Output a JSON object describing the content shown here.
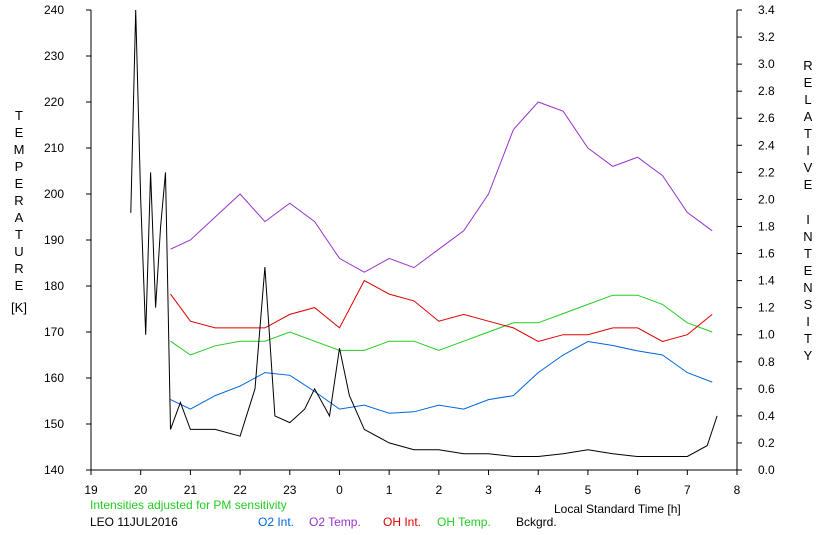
{
  "chart_data": {
    "type": "line",
    "xlabel": "Local Standard Time [h]",
    "ylabel_left": "TEMPERATURE",
    "ylabel_left_unit": "[K]",
    "ylabel_right": "RELATIVE INTENSITY",
    "x_ticks": [
      "19",
      "20",
      "21",
      "22",
      "23",
      "0",
      "1",
      "2",
      "3",
      "4",
      "5",
      "6",
      "7",
      "8"
    ],
    "xlim": [
      19,
      32
    ],
    "ylim_left": [
      140,
      240
    ],
    "y_left_ticks": [
      "140",
      "150",
      "160",
      "170",
      "180",
      "190",
      "200",
      "210",
      "220",
      "230",
      "240"
    ],
    "ylim_right": [
      0.0,
      3.4
    ],
    "y_right_ticks": [
      "0.0",
      "0.2",
      "0.4",
      "0.6",
      "0.8",
      "1.0",
      "1.2",
      "1.4",
      "1.6",
      "1.8",
      "2.0",
      "2.2",
      "2.4",
      "2.6",
      "2.8",
      "3.0",
      "3.2",
      "3.4"
    ],
    "grid": false,
    "note": "Intensities adjusted for PM sensitivity",
    "station": "LEO 11JUL2016",
    "series": [
      {
        "name": "O2 Int.",
        "color": "#0066dd",
        "axis": "right",
        "x": [
          20.6,
          21.0,
          21.5,
          22.0,
          22.5,
          23.0,
          23.5,
          24.0,
          24.5,
          25.0,
          25.5,
          26.0,
          26.5,
          27.0,
          27.5,
          28.0,
          28.5,
          29.0,
          29.5,
          30.0,
          30.5,
          31.0,
          31.5
        ],
        "values": [
          0.52,
          0.45,
          0.55,
          0.62,
          0.72,
          0.7,
          0.58,
          0.45,
          0.48,
          0.42,
          0.43,
          0.48,
          0.45,
          0.52,
          0.55,
          0.72,
          0.85,
          0.95,
          0.92,
          0.88,
          0.85,
          0.72,
          0.65
        ]
      },
      {
        "name": "O2 Temp.",
        "color": "#9933cc",
        "axis": "left",
        "x": [
          20.6,
          21.0,
          21.5,
          22.0,
          22.5,
          23.0,
          23.5,
          24.0,
          24.5,
          25.0,
          25.5,
          26.0,
          26.5,
          27.0,
          27.5,
          28.0,
          28.5,
          29.0,
          29.5,
          30.0,
          30.5,
          31.0,
          31.5
        ],
        "values": [
          188,
          190,
          195,
          200,
          194,
          198,
          194,
          186,
          183,
          186,
          184,
          188,
          192,
          200,
          214,
          220,
          218,
          210,
          206,
          208,
          204,
          196,
          192
        ]
      },
      {
        "name": "OH Int.",
        "color": "#dd0000",
        "axis": "right",
        "x": [
          20.6,
          21.0,
          21.5,
          22.0,
          22.5,
          23.0,
          23.5,
          24.0,
          24.5,
          25.0,
          25.5,
          26.0,
          26.5,
          27.0,
          27.5,
          28.0,
          28.5,
          29.0,
          29.5,
          30.0,
          30.5,
          31.0,
          31.5
        ],
        "values": [
          1.3,
          1.1,
          1.05,
          1.05,
          1.05,
          1.15,
          1.2,
          1.05,
          1.4,
          1.3,
          1.25,
          1.1,
          1.15,
          1.1,
          1.05,
          0.95,
          1.0,
          1.0,
          1.05,
          1.05,
          0.95,
          1.0,
          1.15
        ]
      },
      {
        "name": "OH Temp.",
        "color": "#22cc22",
        "axis": "left",
        "x": [
          20.6,
          21.0,
          21.5,
          22.0,
          22.5,
          23.0,
          23.5,
          24.0,
          24.5,
          25.0,
          25.5,
          26.0,
          26.5,
          27.0,
          27.5,
          28.0,
          28.5,
          29.0,
          29.5,
          30.0,
          30.5,
          31.0,
          31.5
        ],
        "values": [
          168,
          165,
          167,
          168,
          168,
          170,
          168,
          166,
          166,
          168,
          168,
          166,
          168,
          170,
          172,
          172,
          174,
          176,
          178,
          178,
          176,
          172,
          170
        ]
      },
      {
        "name": "Bckgrd.",
        "color": "#000000",
        "axis": "right",
        "x": [
          19.8,
          19.9,
          20.0,
          20.1,
          20.2,
          20.3,
          20.4,
          20.5,
          20.6,
          20.8,
          21.0,
          21.5,
          22.0,
          22.3,
          22.5,
          22.7,
          23.0,
          23.3,
          23.5,
          23.8,
          24.0,
          24.2,
          24.5,
          25.0,
          25.5,
          26.0,
          26.5,
          27.0,
          27.5,
          28.0,
          28.5,
          29.0,
          29.5,
          30.0,
          30.5,
          31.0,
          31.4,
          31.6
        ],
        "values": [
          1.9,
          3.4,
          2.0,
          1.0,
          2.2,
          1.2,
          1.8,
          2.2,
          0.3,
          0.5,
          0.3,
          0.3,
          0.25,
          0.6,
          1.5,
          0.4,
          0.35,
          0.45,
          0.6,
          0.4,
          0.9,
          0.55,
          0.3,
          0.2,
          0.15,
          0.15,
          0.12,
          0.12,
          0.1,
          0.1,
          0.12,
          0.15,
          0.12,
          0.1,
          0.1,
          0.1,
          0.18,
          0.4
        ]
      }
    ]
  }
}
